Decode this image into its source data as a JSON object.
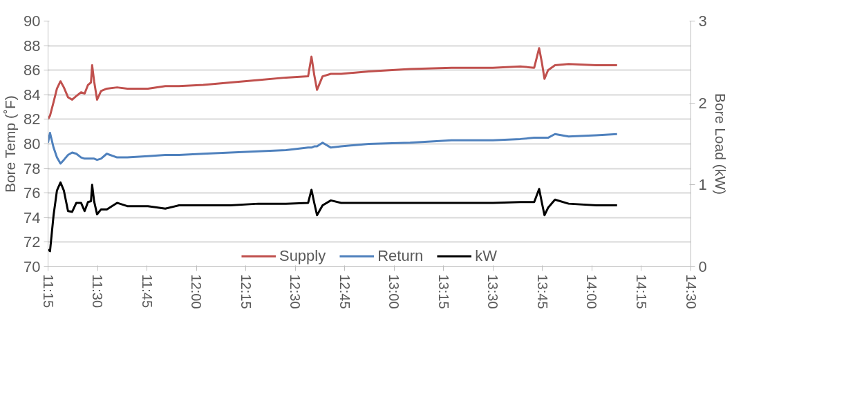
{
  "chart_data": {
    "type": "line",
    "ylabel": "Bore Temp (˚F)",
    "y2label": "Bore Load (kW)",
    "x": [
      11.25,
      11.26,
      11.278,
      11.295,
      11.313,
      11.33,
      11.351,
      11.372,
      11.393,
      11.417,
      11.435,
      11.452,
      11.467,
      11.473,
      11.483,
      11.498,
      11.518,
      11.547,
      11.599,
      11.651,
      11.755,
      11.843,
      11.912,
      12.035,
      12.173,
      12.313,
      12.453,
      12.565,
      12.582,
      12.596,
      12.61,
      12.638,
      12.68,
      12.732,
      12.872,
      13.08,
      13.29,
      13.499,
      13.638,
      13.708,
      13.733,
      13.747,
      13.76,
      13.778,
      13.813,
      13.882,
      14.022,
      14.127
    ],
    "series": [
      {
        "name": "Supply",
        "color": "#c0504d",
        "values": [
          82.0,
          82.3,
          83.4,
          84.5,
          85.1,
          84.6,
          83.8,
          83.6,
          83.9,
          84.2,
          84.1,
          84.8,
          85.0,
          86.4,
          85.1,
          83.6,
          84.3,
          84.5,
          84.6,
          84.5,
          84.5,
          84.7,
          84.7,
          84.8,
          85.0,
          85.2,
          85.4,
          85.5,
          87.1,
          85.6,
          84.4,
          85.5,
          85.7,
          85.7,
          85.9,
          86.1,
          86.2,
          86.2,
          86.3,
          86.2,
          87.8,
          86.6,
          85.3,
          86.0,
          86.4,
          86.5,
          86.4,
          86.4
        ]
      },
      {
        "name": "Return",
        "color": "#4f81bd",
        "values": [
          80.1,
          80.9,
          79.7,
          78.9,
          78.4,
          78.7,
          79.1,
          79.3,
          79.2,
          78.9,
          78.8,
          78.8,
          78.8,
          78.8,
          78.8,
          78.7,
          78.8,
          79.2,
          78.9,
          78.9,
          79.0,
          79.1,
          79.1,
          79.2,
          79.3,
          79.4,
          79.5,
          79.7,
          79.7,
          79.8,
          79.8,
          80.1,
          79.7,
          79.8,
          80.0,
          80.1,
          80.3,
          80.3,
          80.4,
          80.5,
          80.5,
          80.5,
          80.5,
          80.5,
          80.8,
          80.6,
          80.7,
          80.8
        ]
      },
      {
        "name": "kW",
        "color": "#000000",
        "axis": "y2",
        "values": [
          0.21,
          0.19,
          0.63,
          0.93,
          1.03,
          0.93,
          0.68,
          0.67,
          0.78,
          0.78,
          0.68,
          0.79,
          0.8,
          1.0,
          0.8,
          0.64,
          0.7,
          0.7,
          0.78,
          0.74,
          0.74,
          0.71,
          0.75,
          0.75,
          0.75,
          0.77,
          0.77,
          0.78,
          0.94,
          0.78,
          0.63,
          0.75,
          0.81,
          0.78,
          0.78,
          0.78,
          0.78,
          0.78,
          0.79,
          0.79,
          0.95,
          0.78,
          0.63,
          0.72,
          0.82,
          0.77,
          0.75,
          0.75
        ]
      }
    ],
    "xlim": [
      11.25,
      14.5
    ],
    "xticks": [
      {
        "value": 11.25,
        "label": "11:15"
      },
      {
        "value": 11.5,
        "label": "11:30"
      },
      {
        "value": 11.75,
        "label": "11:45"
      },
      {
        "value": 12.0,
        "label": "12:00"
      },
      {
        "value": 12.25,
        "label": "12:15"
      },
      {
        "value": 12.5,
        "label": "12:30"
      },
      {
        "value": 12.75,
        "label": "12:45"
      },
      {
        "value": 13.0,
        "label": "13:00"
      },
      {
        "value": 13.25,
        "label": "13:15"
      },
      {
        "value": 13.5,
        "label": "13:30"
      },
      {
        "value": 13.75,
        "label": "13:45"
      },
      {
        "value": 14.0,
        "label": "14:00"
      },
      {
        "value": 14.25,
        "label": "14:15"
      },
      {
        "value": 14.5,
        "label": "14:30"
      }
    ],
    "ylim": [
      70,
      90
    ],
    "yticks": [
      70,
      72,
      74,
      76,
      78,
      80,
      82,
      84,
      86,
      88,
      90
    ],
    "y2lim": [
      0,
      3
    ],
    "y2ticks": [
      0,
      1,
      2,
      3
    ],
    "grid": "y",
    "legend": "bottom",
    "line_style": "solid",
    "marker": "none"
  }
}
